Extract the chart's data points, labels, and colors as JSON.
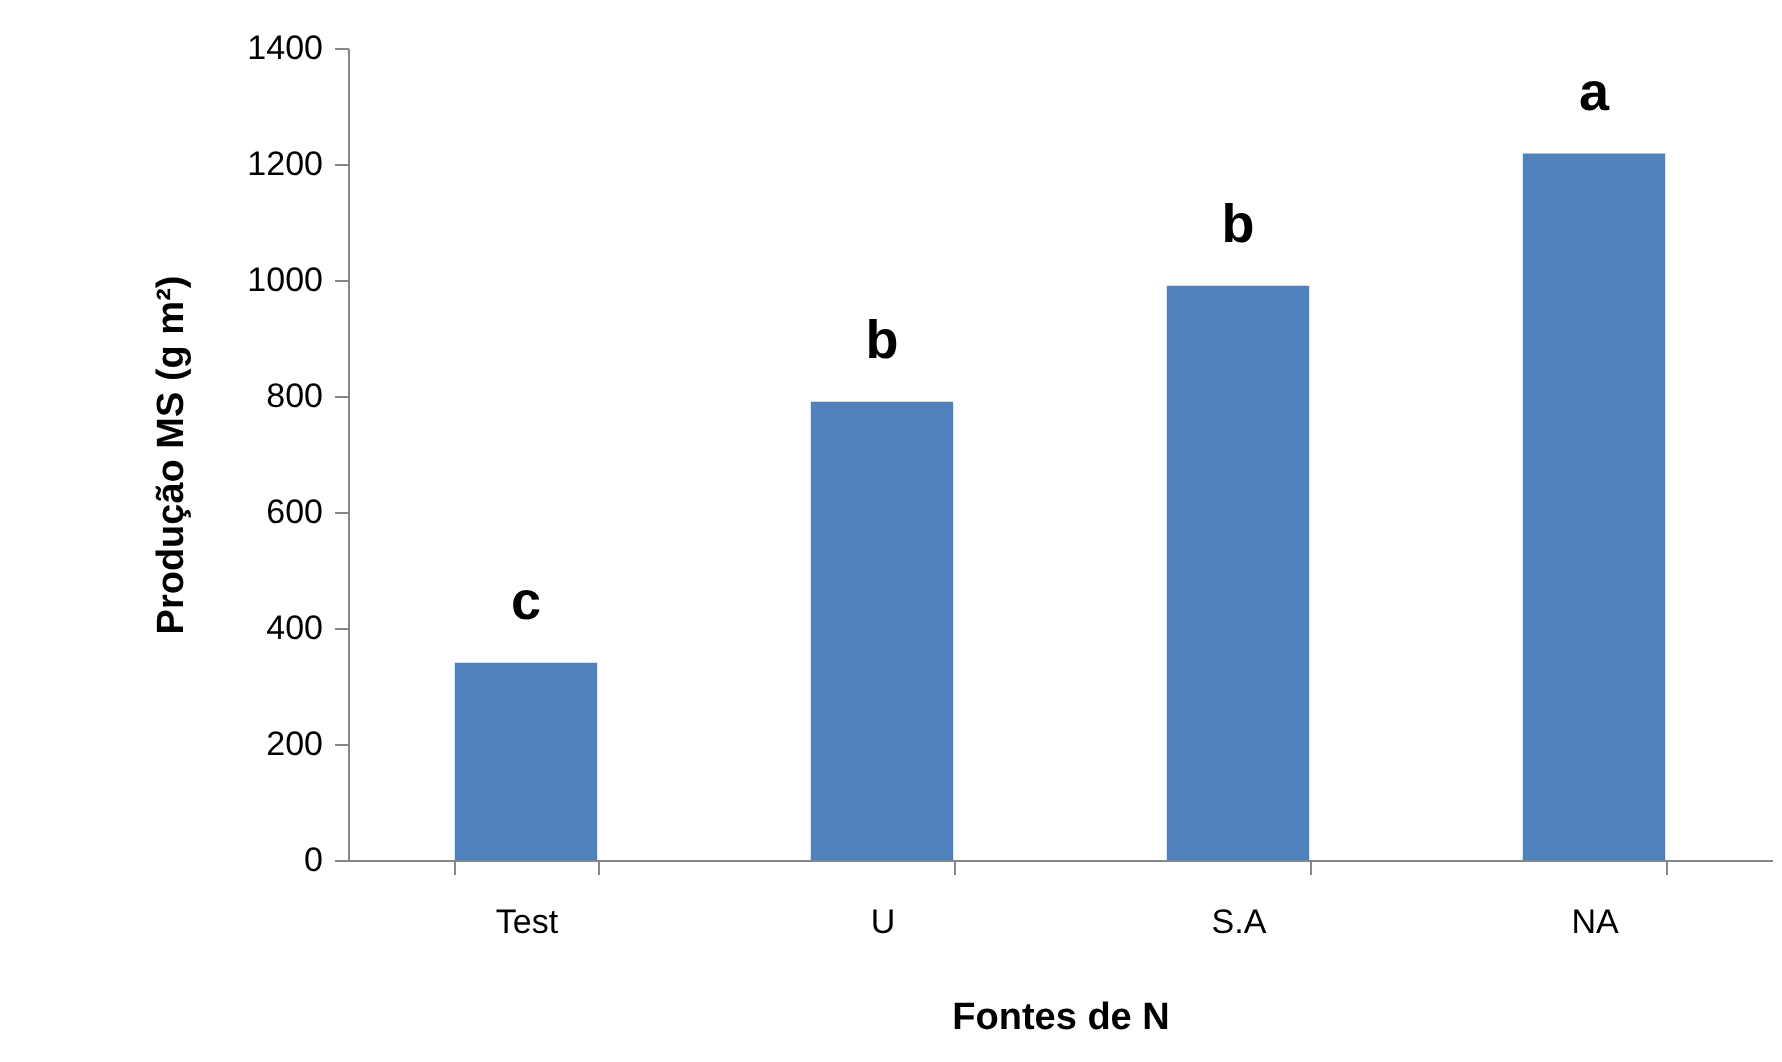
{
  "chart_data": {
    "type": "bar",
    "xlabel": "Fontes de N",
    "ylabel": "Produção MS (g m²)",
    "categories": [
      "Test",
      "U",
      "S.A",
      "NA"
    ],
    "values": [
      340,
      790,
      990,
      1218
    ],
    "color": "#4f81bd",
    "ylim": [
      0,
      1400
    ],
    "yticks": [
      0,
      200,
      400,
      600,
      800,
      1000,
      1200,
      1400
    ],
    "grid": false,
    "annotations": [
      "c",
      "b",
      "b",
      "a"
    ]
  }
}
